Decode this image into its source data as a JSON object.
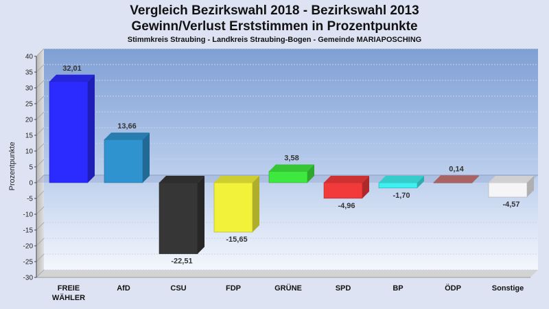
{
  "chart_data": {
    "type": "bar",
    "title": "Vergleich Bezirkswahl 2018 - Bezirkswahl 2013",
    "subtitle": "Gewinn/Verlust Erststimmen in Prozentpunkte",
    "caption": "Stimmkreis Straubing - Landkreis Straubing-Bogen - Gemeinde MARIAPOSCHING",
    "xlabel": "",
    "ylabel": "Prozentpunkte",
    "ylim": [
      -30,
      40
    ],
    "ytick_step": 5,
    "categories": [
      [
        "FREIE",
        "WÄHLER"
      ],
      [
        "AfD"
      ],
      [
        "CSU"
      ],
      [
        "FDP"
      ],
      [
        "GRÜNE"
      ],
      [
        "SPD"
      ],
      [
        "BP"
      ],
      [
        "ÖDP"
      ],
      [
        "Sonstige"
      ]
    ],
    "values": [
      32.01,
      13.66,
      -22.51,
      -15.65,
      3.58,
      -4.96,
      -1.7,
      0.14,
      -4.57
    ],
    "value_labels": [
      "32,01",
      "13,66",
      "-22,51",
      "-15,65",
      "3,58",
      "-4,96",
      "-1,70",
      "0,14",
      "-4,57"
    ],
    "colors": [
      "#2b2bff",
      "#2e93cf",
      "#363636",
      "#f2f23a",
      "#3ee83e",
      "#f23a3a",
      "#3ff0f0",
      "#c77474",
      "#f5f5f7"
    ],
    "grid": true,
    "legend": "none"
  }
}
